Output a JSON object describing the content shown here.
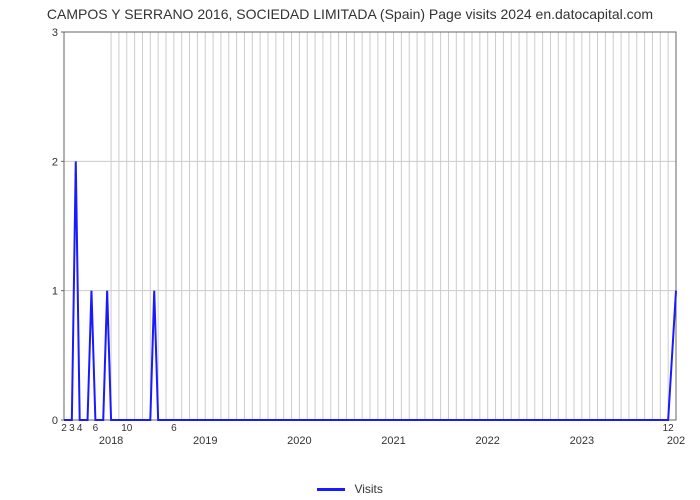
{
  "title": "CAMPOS Y SERRANO 2016, SOCIEDAD LIMITADA (Spain) Page visits 2024 en.datocapital.com",
  "legend_label": "Visits",
  "chart": {
    "type": "line",
    "line_color": "#1a1aff",
    "line_width": 2,
    "background_color": "#ffffff",
    "plot_border_color": "#666666",
    "grid_color": "#cccccc",
    "grid_width": 1,
    "y": {
      "min": 0,
      "max": 3,
      "ticks": [
        0,
        1,
        2,
        3
      ],
      "grid_at": [
        0,
        1,
        2,
        3
      ]
    },
    "x": {
      "min": 0,
      "max": 78,
      "year_ticks": [
        {
          "pos": 6,
          "label": "2018"
        },
        {
          "pos": 18,
          "label": "2019"
        },
        {
          "pos": 30,
          "label": "2020"
        },
        {
          "pos": 42,
          "label": "2021"
        },
        {
          "pos": 54,
          "label": "2022"
        },
        {
          "pos": 66,
          "label": "2023"
        },
        {
          "pos": 78,
          "label": "202"
        }
      ],
      "month_grid": [
        6,
        7,
        8,
        9,
        10,
        11,
        12,
        13,
        14,
        15,
        16,
        17,
        18,
        19,
        20,
        21,
        22,
        23,
        24,
        25,
        26,
        27,
        28,
        29,
        30,
        31,
        32,
        33,
        34,
        35,
        36,
        37,
        38,
        39,
        40,
        41,
        42,
        43,
        44,
        45,
        46,
        47,
        48,
        49,
        50,
        51,
        52,
        53,
        54,
        55,
        56,
        57,
        58,
        59,
        60,
        61,
        62,
        63,
        64,
        65,
        66,
        67,
        68,
        69,
        70,
        71,
        72,
        73,
        74,
        75,
        76,
        77
      ]
    },
    "series": [
      {
        "x": 0,
        "y": 0,
        "label": "2"
      },
      {
        "x": 1,
        "y": 0,
        "label": "3"
      },
      {
        "x": 1.5,
        "y": 2,
        "label": ""
      },
      {
        "x": 2,
        "y": 0,
        "label": "4"
      },
      {
        "x": 3,
        "y": 0,
        "label": ""
      },
      {
        "x": 3.5,
        "y": 1,
        "label": ""
      },
      {
        "x": 4,
        "y": 0,
        "label": "6"
      },
      {
        "x": 5,
        "y": 0,
        "label": ""
      },
      {
        "x": 5.5,
        "y": 1,
        "label": ""
      },
      {
        "x": 6,
        "y": 0,
        "label": ""
      },
      {
        "x": 7,
        "y": 0,
        "label": ""
      },
      {
        "x": 8,
        "y": 0,
        "label": "10"
      },
      {
        "x": 9,
        "y": 0,
        "label": ""
      },
      {
        "x": 10,
        "y": 0,
        "label": ""
      },
      {
        "x": 11,
        "y": 0,
        "label": ""
      },
      {
        "x": 11.5,
        "y": 1,
        "label": ""
      },
      {
        "x": 12,
        "y": 0,
        "label": ""
      },
      {
        "x": 13,
        "y": 0,
        "label": ""
      },
      {
        "x": 14,
        "y": 0,
        "label": "6"
      },
      {
        "x": 20,
        "y": 0,
        "label": ""
      },
      {
        "x": 30,
        "y": 0,
        "label": ""
      },
      {
        "x": 40,
        "y": 0,
        "label": ""
      },
      {
        "x": 50,
        "y": 0,
        "label": ""
      },
      {
        "x": 60,
        "y": 0,
        "label": ""
      },
      {
        "x": 70,
        "y": 0,
        "label": ""
      },
      {
        "x": 76,
        "y": 0,
        "label": ""
      },
      {
        "x": 77,
        "y": 0,
        "label": "12"
      },
      {
        "x": 78,
        "y": 1,
        "label": ""
      }
    ]
  }
}
